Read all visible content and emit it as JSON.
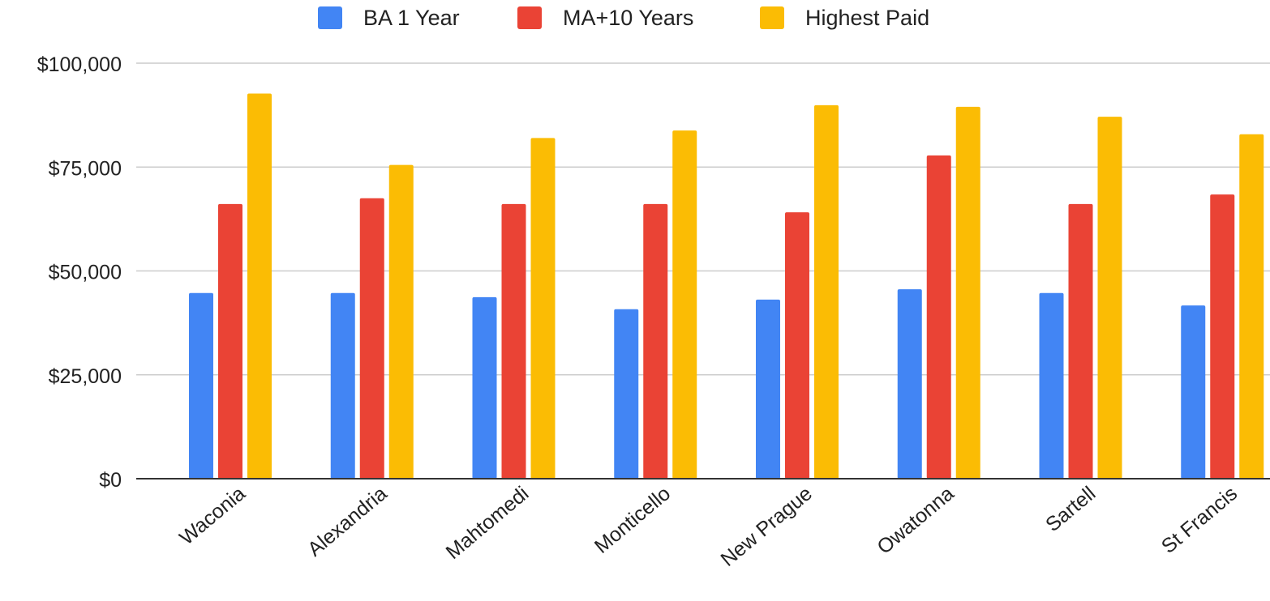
{
  "chart_data": {
    "type": "bar",
    "title": "",
    "xlabel": "",
    "ylabel": "",
    "categories": [
      "Waconia",
      "Alexandria",
      "Mahtomedi",
      "Monticello",
      "New Prague",
      "Owatonna",
      "Sartell",
      "St Francis"
    ],
    "series": [
      {
        "name": "BA 1 Year",
        "color": "#4285f4",
        "values": [
          44700,
          44700,
          43700,
          40800,
          43100,
          45600,
          44700,
          41700
        ]
      },
      {
        "name": "MA+10 Years",
        "color": "#ea4335",
        "values": [
          66100,
          67500,
          66100,
          66100,
          64100,
          77800,
          66100,
          68400
        ]
      },
      {
        "name": "Highest Paid",
        "color": "#fbbc04",
        "values": [
          92700,
          75500,
          82000,
          83800,
          89900,
          89500,
          87100,
          82900
        ]
      }
    ],
    "ylim": [
      0,
      100000
    ],
    "yticks": [
      0,
      25000,
      50000,
      75000,
      100000
    ],
    "ytick_labels": [
      "$0",
      "$25,000",
      "$50,000",
      "$75,000",
      "$100,000"
    ],
    "grid": true,
    "legend_position": "top"
  }
}
